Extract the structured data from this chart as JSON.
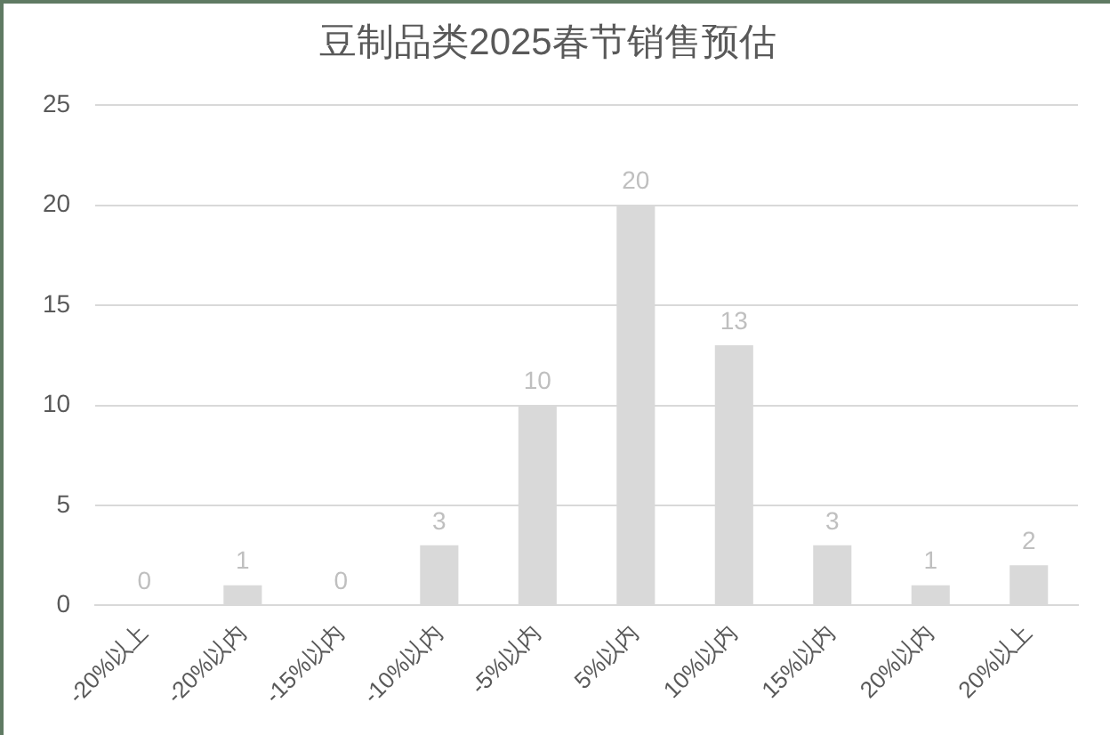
{
  "chart_data": {
    "type": "bar",
    "title": "豆制品类2025春节销售预估",
    "categories": [
      "-20%以上",
      "-20%以内",
      "-15%以内",
      "-10%以内",
      "-5%以内",
      "5%以内",
      "10%以内",
      "15%以内",
      "20%以内",
      "20%以上"
    ],
    "values": [
      0,
      1,
      0,
      3,
      10,
      20,
      13,
      3,
      1,
      2
    ],
    "color": "#d9d9d9",
    "ylim": [
      0,
      25
    ],
    "yticks": [
      0,
      5,
      10,
      15,
      20,
      25
    ],
    "grid": "y",
    "data_labels": true
  }
}
